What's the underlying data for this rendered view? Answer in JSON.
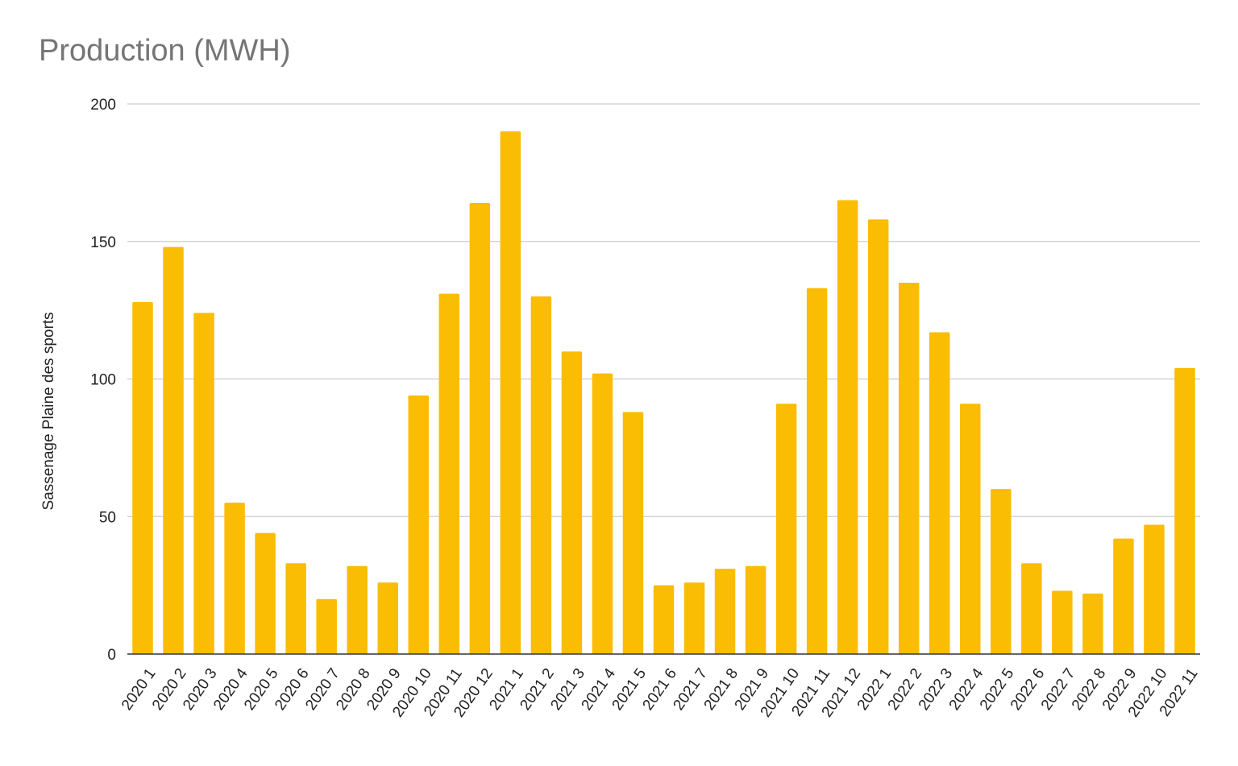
{
  "chart_data": {
    "type": "bar",
    "title": "Production (MWH)",
    "xlabel": "",
    "ylabel": "Sassenage Plaine des sports",
    "ylim": [
      0,
      200
    ],
    "yticks": [
      0,
      50,
      100,
      150,
      200
    ],
    "grid": true,
    "legend": "none",
    "bar_color": "#FBBC04",
    "grid_color": "#CCCCCC",
    "axis_color": "#333333",
    "categories": [
      "2020 1",
      "2020 2",
      "2020 3",
      "2020 4",
      "2020 5",
      "2020 6",
      "2020 7",
      "2020 8",
      "2020 9",
      "2020 10",
      "2020 11",
      "2020 12",
      "2021 1",
      "2021 2",
      "2021 3",
      "2021 4",
      "2021 5",
      "2021 6",
      "2021 7",
      "2021 8",
      "2021 9",
      "2021 10",
      "2021 11",
      "2021 12",
      "2022 1",
      "2022 2",
      "2022 3",
      "2022 4",
      "2022 5",
      "2022 6",
      "2022 7",
      "2022 8",
      "2022 9",
      "2022 10",
      "2022 11"
    ],
    "values": [
      128,
      148,
      124,
      55,
      44,
      33,
      20,
      32,
      26,
      94,
      131,
      164,
      190,
      130,
      110,
      102,
      88,
      25,
      26,
      31,
      32,
      91,
      133,
      165,
      158,
      135,
      117,
      91,
      60,
      33,
      23,
      22,
      42,
      47,
      104
    ]
  }
}
